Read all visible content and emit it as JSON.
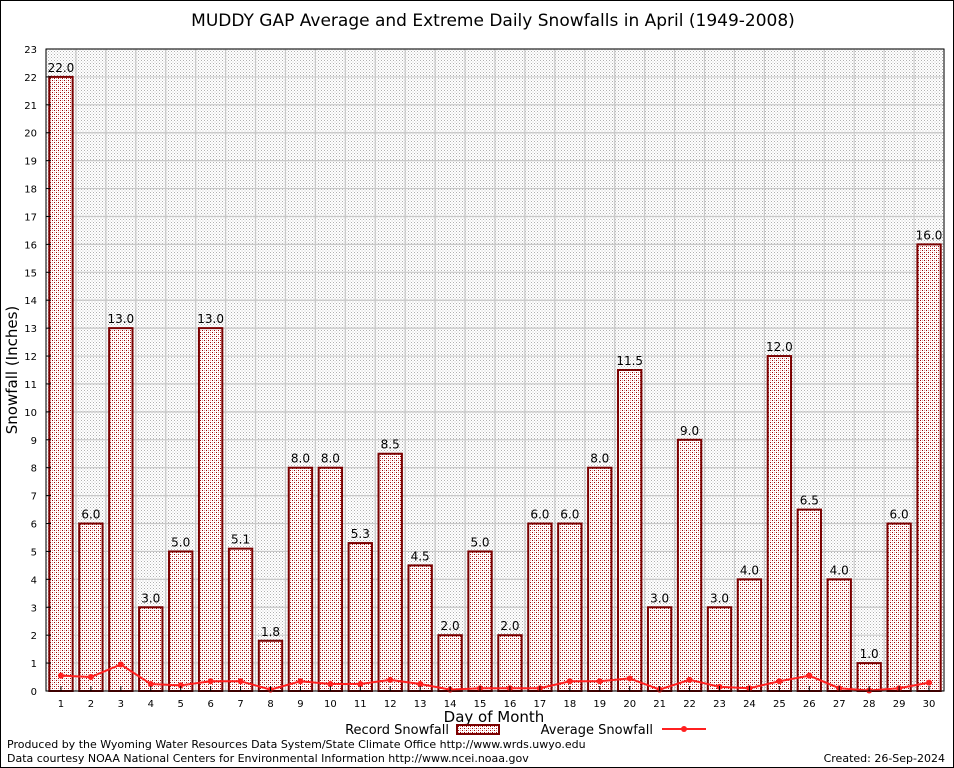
{
  "chart_data": {
    "type": "bar",
    "title": "MUDDY GAP Average and Extreme Daily Snowfalls in April (1949-2008)",
    "xlabel": "Day of Month",
    "ylabel": "Snowfall (Inches)",
    "ylim": [
      0,
      23
    ],
    "yticks": [
      "0",
      "1",
      "2",
      "3",
      "4",
      "5",
      "6",
      "7",
      "8",
      "9",
      "10",
      "11",
      "12",
      "13",
      "14",
      "15",
      "16",
      "17",
      "18",
      "19",
      "20",
      "21",
      "22",
      "23"
    ],
    "grid": true,
    "legend_position": "bottom",
    "categories": [
      "1",
      "2",
      "3",
      "4",
      "5",
      "6",
      "7",
      "8",
      "9",
      "10",
      "11",
      "12",
      "13",
      "14",
      "15",
      "16",
      "17",
      "18",
      "19",
      "20",
      "21",
      "22",
      "23",
      "24",
      "25",
      "26",
      "27",
      "28",
      "29",
      "30"
    ],
    "series": [
      {
        "name": "Record Snowfall",
        "type": "bar",
        "color": "#a00000",
        "values": [
          22.0,
          6.0,
          13.0,
          3.0,
          5.0,
          13.0,
          5.1,
          1.8,
          8.0,
          8.0,
          5.3,
          8.5,
          4.5,
          2.0,
          5.0,
          2.0,
          6.0,
          6.0,
          8.0,
          11.5,
          3.0,
          9.0,
          3.0,
          4.0,
          12.0,
          6.5,
          4.0,
          1.0,
          6.0,
          16.0
        ],
        "labels": [
          "22.0",
          "6.0",
          "13.0",
          "3.0",
          "5.0",
          "13.0",
          "5.1",
          "1.8",
          "8.0",
          "8.0",
          "5.3",
          "8.5",
          "4.5",
          "2.0",
          "5.0",
          "2.0",
          "6.0",
          "6.0",
          "8.0",
          "11.5",
          "3.0",
          "9.0",
          "3.0",
          "4.0",
          "12.0",
          "6.5",
          "4.0",
          "1.0",
          "6.0",
          "16.0"
        ]
      },
      {
        "name": "Average Snowfall",
        "type": "line",
        "color": "#ff2020",
        "values": [
          0.55,
          0.5,
          0.95,
          0.25,
          0.2,
          0.35,
          0.35,
          0.05,
          0.35,
          0.25,
          0.25,
          0.4,
          0.25,
          0.05,
          0.1,
          0.1,
          0.1,
          0.35,
          0.35,
          0.45,
          0.05,
          0.4,
          0.15,
          0.1,
          0.35,
          0.55,
          0.1,
          0.02,
          0.1,
          0.3
        ]
      }
    ]
  },
  "footer": {
    "produced_by": "Produced by the Wyoming Water Resources Data System/State Climate Office http://www.wrds.uwyo.edu",
    "data_courtesy": "Data courtesy NOAA National Centers for Environmental Information http://www.ncei.noaa.gov",
    "created": "Created:  26-Sep-2024"
  }
}
